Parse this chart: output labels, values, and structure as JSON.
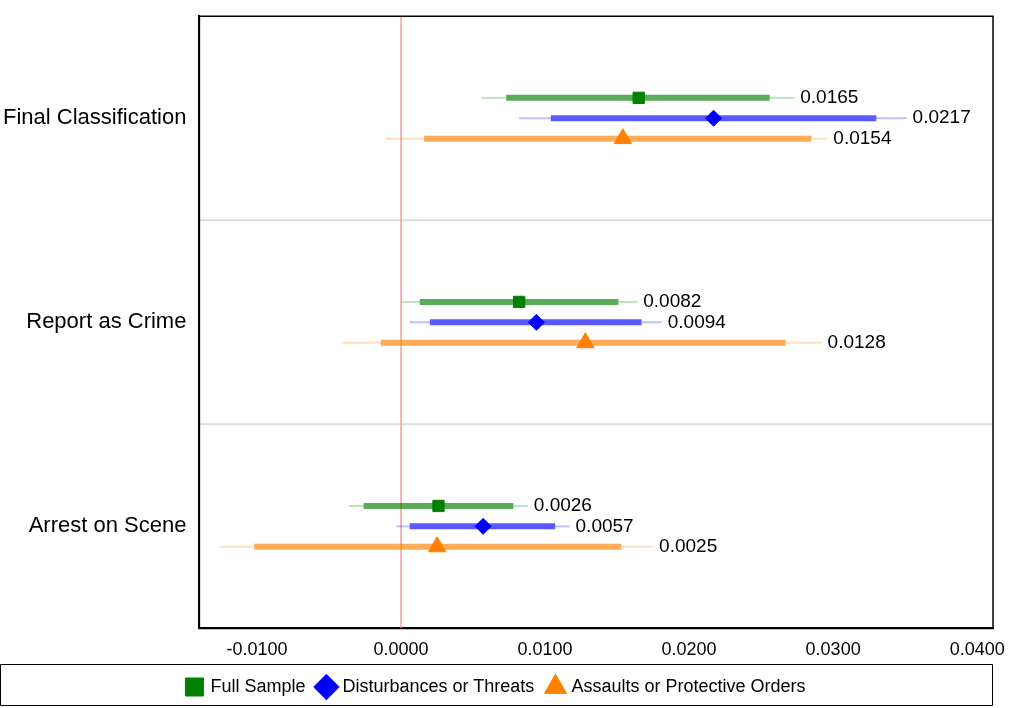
{
  "chart_data": {
    "type": "box",
    "orientation": "horizontal",
    "categories": [
      "Final Classification",
      "Report as Crime",
      "Arrest on Scene"
    ],
    "series": [
      {
        "name": "Full Sample",
        "color": "#008000",
        "marker": "square",
        "boxes": [
          {
            "low": 0.0056,
            "q1": 0.0073,
            "median": 0.0165,
            "q3": 0.0256,
            "high": 0.0273
          },
          {
            "low": 0.0,
            "q1": 0.0013,
            "median": 0.0082,
            "q3": 0.0151,
            "high": 0.0164
          },
          {
            "low": -0.0036,
            "q1": -0.0026,
            "median": 0.0026,
            "q3": 0.0078,
            "high": 0.0088
          }
        ]
      },
      {
        "name": "Disturbances or Threats",
        "color": "#0000ff",
        "marker": "diamond",
        "boxes": [
          {
            "low": 0.0082,
            "q1": 0.0104,
            "median": 0.0217,
            "q3": 0.033,
            "high": 0.0351
          },
          {
            "low": 0.0006,
            "q1": 0.002,
            "median": 0.0094,
            "q3": 0.0167,
            "high": 0.0181
          },
          {
            "low": -0.0003,
            "q1": 0.0006,
            "median": 0.0057,
            "q3": 0.0107,
            "high": 0.0117
          }
        ]
      },
      {
        "name": "Assaults or Protective Orders",
        "color": "#ff8000",
        "marker": "triangle",
        "boxes": [
          {
            "low": -0.0011,
            "q1": 0.0016,
            "median": 0.0154,
            "q3": 0.0285,
            "high": 0.0296
          },
          {
            "low": -0.0041,
            "q1": -0.0014,
            "median": 0.0128,
            "q3": 0.0267,
            "high": 0.0292
          },
          {
            "low": -0.0126,
            "q1": -0.0102,
            "median": 0.0025,
            "q3": 0.0153,
            "high": 0.0175
          }
        ]
      }
    ],
    "annotations": [
      "0.0165",
      "0.0217",
      "0.0154",
      "0.0082",
      "0.0094",
      "0.0128",
      "0.0026",
      "0.0057",
      "0.0025"
    ],
    "xlim": [
      -0.014,
      0.0411
    ],
    "xticks": [
      {
        "value": -0.01,
        "label": "-0.0100"
      },
      {
        "value": 0,
        "label": "0.0000"
      },
      {
        "value": 0.01,
        "label": "0.0100"
      },
      {
        "value": 0.02,
        "label": "0.0200"
      },
      {
        "value": 0.03,
        "label": "0.0300"
      },
      {
        "value": 0.04,
        "label": "0.0400"
      }
    ],
    "ref_lines": [
      {
        "axis": "x",
        "value": 0,
        "color": "#ff9999"
      }
    ],
    "grid": "y",
    "legend": "bottom"
  }
}
